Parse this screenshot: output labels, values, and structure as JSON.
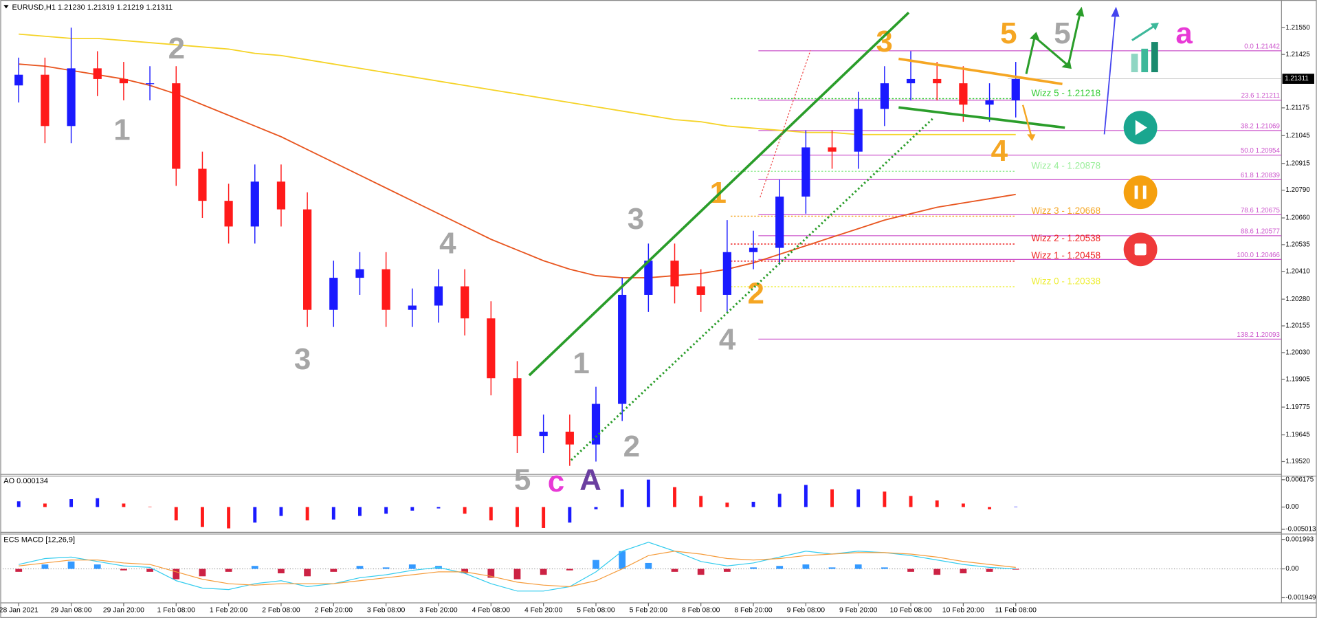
{
  "chart_data": [
    {
      "type": "candlestick",
      "title": "EURUSD,H1",
      "header_values": [
        "1.21230",
        "1.21319",
        "1.21219",
        "1.21311"
      ],
      "categories": [
        "28 Jan 2021",
        null,
        "29 Jan 08:00",
        null,
        "29 Jan 20:00",
        null,
        "1 Feb 08:00",
        null,
        "1 Feb 20:00",
        null,
        "2 Feb 08:00",
        null,
        "2 Feb 20:00",
        null,
        "3 Feb 08:00",
        null,
        "3 Feb 20:00",
        null,
        "4 Feb 08:00",
        null,
        "4 Feb 20:00",
        null,
        "5 Feb 08:00",
        null,
        "5 Feb 20:00",
        null,
        "8 Feb 08:00",
        null,
        "8 Feb 20:00",
        null,
        "9 Feb 08:00",
        null,
        "9 Feb 20:00",
        null,
        "10 Feb 08:00",
        null,
        "10 Feb 20:00",
        null,
        "11 Feb 08:00"
      ],
      "open": [
        1.2128,
        1.2133,
        1.2109,
        1.2136,
        1.2131,
        1.2129,
        1.2129,
        1.2089,
        1.2074,
        1.2062,
        1.2083,
        1.207,
        1.2023,
        1.2038,
        1.2042,
        1.2023,
        1.2025,
        1.2034,
        1.2019,
        1.1991,
        1.1964,
        1.1966,
        1.196,
        1.1979,
        1.203,
        1.2046,
        1.2034,
        1.203,
        1.205,
        1.2052,
        1.2076,
        1.2099,
        1.2097,
        1.2117,
        1.2129,
        1.2131,
        1.2129,
        1.2119,
        1.2121
      ],
      "high": [
        1.2141,
        1.2141,
        1.2155,
        1.2144,
        1.2139,
        1.2137,
        1.2137,
        1.2097,
        1.2082,
        1.2091,
        1.2091,
        1.2078,
        1.2046,
        1.205,
        1.205,
        1.2033,
        1.2042,
        1.2042,
        1.2027,
        1.1999,
        1.1974,
        1.1974,
        1.1987,
        1.2038,
        1.2054,
        1.2054,
        1.2042,
        1.2065,
        1.206,
        1.2084,
        1.2107,
        1.2107,
        1.2125,
        1.2137,
        1.2144,
        1.2139,
        1.2137,
        1.2129,
        1.2139
      ],
      "low": [
        1.212,
        1.2101,
        1.2101,
        1.2123,
        1.2121,
        1.2121,
        1.2081,
        1.2066,
        1.2054,
        1.2054,
        1.2062,
        1.2015,
        1.2015,
        1.203,
        1.2015,
        1.2015,
        1.2017,
        1.2011,
        1.1983,
        1.1956,
        1.1956,
        1.195,
        1.1952,
        1.1971,
        1.2022,
        1.2026,
        1.2022,
        1.2022,
        1.2042,
        1.2044,
        1.2068,
        1.2089,
        1.2089,
        1.2109,
        1.2121,
        1.2121,
        1.2111,
        1.2111,
        1.2113
      ],
      "close": [
        1.2133,
        1.2109,
        1.2136,
        1.2131,
        1.2129,
        1.2129,
        1.2089,
        1.2074,
        1.2062,
        1.2083,
        1.207,
        1.2023,
        1.2038,
        1.2042,
        1.2023,
        1.2025,
        1.2034,
        1.2019,
        1.1991,
        1.1964,
        1.1966,
        1.196,
        1.1979,
        1.203,
        1.2046,
        1.2034,
        1.203,
        1.205,
        1.2052,
        1.2076,
        1.2099,
        1.2097,
        1.2117,
        1.2129,
        1.2131,
        1.2129,
        1.2119,
        1.2121,
        1.2131
      ],
      "up_color": "#1a1aff",
      "down_color": "#ff1a1a",
      "overlays": [
        {
          "color": "#f5d327",
          "values": [
            1.2152,
            1.2151,
            1.215,
            1.215,
            1.2149,
            1.2148,
            1.2147,
            1.2146,
            1.2145,
            1.2143,
            1.2142,
            1.214,
            1.2138,
            1.2136,
            1.2134,
            1.2132,
            1.213,
            1.2128,
            1.2126,
            1.2124,
            1.2122,
            1.212,
            1.2118,
            1.2116,
            1.2114,
            1.2112,
            1.2111,
            1.2109,
            1.2108,
            1.2107,
            1.2106,
            1.2106,
            1.2105,
            1.2105,
            1.2105,
            1.2105,
            1.2105,
            1.2105,
            1.2105
          ]
        },
        {
          "color": "#e8551f",
          "values": [
            1.2138,
            1.2137,
            1.2135,
            1.2133,
            1.2131,
            1.2128,
            1.2124,
            1.2119,
            1.2114,
            1.2109,
            1.2104,
            1.2098,
            1.2092,
            1.2086,
            1.208,
            1.2074,
            1.2068,
            1.2062,
            1.2056,
            1.2051,
            1.2046,
            1.2042,
            1.2039,
            1.2038,
            1.2038,
            1.2039,
            1.204,
            1.2042,
            1.2045,
            1.2049,
            1.2053,
            1.2057,
            1.2061,
            1.2065,
            1.2068,
            1.2071,
            1.2073,
            1.2075,
            1.2077
          ]
        }
      ],
      "last_price": 1.21311,
      "ylim": [
        1.1946,
        1.2166
      ],
      "yticks": [
        {
          "value": 1.2155,
          "label": "1.21550"
        },
        1.21425,
        1.21175,
        1.21045,
        1.20915,
        {
          "value": 1.2079,
          "label": "1.20790"
        },
        {
          "value": 1.2066,
          "label": "1.20660"
        },
        1.20535,
        {
          "value": 1.2041,
          "label": "1.20410"
        },
        {
          "value": 1.2028,
          "label": "1.20280"
        },
        1.20155,
        {
          "value": 1.2003,
          "label": "1.20030"
        },
        1.19905,
        1.19775,
        1.19645,
        {
          "value": 1.1952,
          "label": "1.19520"
        }
      ],
      "fib_color": "#cc55cc",
      "fib_levels": [
        {
          "value": 1.21442,
          "label": "0.0 1.21442"
        },
        {
          "value": 1.21211,
          "label": "23.6 1.21211"
        },
        {
          "value": 1.21069,
          "label": "38.2 1.21069"
        },
        {
          "value": 1.20954,
          "label": "50.0 1.20954"
        },
        {
          "value": 1.20839,
          "label": "61.8 1.20839"
        },
        {
          "value": 1.20675,
          "label": "78.6 1.20675"
        },
        {
          "value": 1.20577,
          "label": "88.6 1.20577"
        },
        {
          "value": 1.20466,
          "label": "100.0 1.20466"
        },
        {
          "value": 1.20093,
          "label": "138.2 1.20093"
        }
      ],
      "wizz_levels": [
        {
          "value": 1.21218,
          "label": "Wizz 5 - 1.21218",
          "color": "#33cc33"
        },
        {
          "value": 1.20878,
          "label": "Wizz 4 - 1.20878",
          "color": "#99ee99"
        },
        {
          "value": 1.20668,
          "label": "Wizz 3 - 1.20668",
          "color": "#f5a623"
        },
        {
          "value": 1.20538,
          "label": "Wizz 2 - 1.20538",
          "color": "#ee2222"
        },
        {
          "value": 1.20458,
          "label": "Wizz 1 - 1.20458",
          "color": "#ee2222"
        },
        {
          "value": 1.20338,
          "label": "Wizz 0 - 1.20338",
          "color": "#eeee33"
        }
      ],
      "wave_labels": [
        {
          "text": "2",
          "color": "#a6a6a6"
        },
        {
          "text": "1",
          "color": "#a6a6a6"
        },
        {
          "text": "3",
          "color": "#a6a6a6"
        },
        {
          "text": "4",
          "color": "#a6a6a6"
        },
        {
          "text": "5",
          "color": "#a6a6a6"
        },
        {
          "text": "c",
          "color": "#e83ad6"
        },
        {
          "text": "A",
          "color": "#6b3fa0"
        },
        {
          "text": "1",
          "color": "#a6a6a6"
        },
        {
          "text": "2",
          "color": "#a6a6a6"
        },
        {
          "text": "3",
          "color": "#a6a6a6"
        },
        {
          "text": "4",
          "color": "#a6a6a6"
        },
        {
          "text": "1",
          "color": "#f5a623"
        },
        {
          "text": "2",
          "color": "#f5a623"
        },
        {
          "text": "3",
          "color": "#f5a623"
        },
        {
          "text": "4",
          "color": "#f5a623"
        },
        {
          "text": "5",
          "color": "#f5a623"
        },
        {
          "text": "5",
          "color": "#a6a6a6"
        },
        {
          "text": "a",
          "color": "#e83ad6"
        }
      ]
    },
    {
      "type": "bar",
      "title": "AO",
      "last_value": 0.000134,
      "up_color": "#1a1aff",
      "down_color": "#ff1a1a",
      "values": [
        0.0013,
        0.0008,
        0.0018,
        0.002,
        0.0008,
        0.0001,
        -0.003,
        -0.0045,
        -0.0048,
        -0.0035,
        -0.002,
        -0.003,
        -0.0028,
        -0.002,
        -0.0015,
        -0.0008,
        -0.0003,
        -0.0015,
        -0.003,
        -0.0045,
        -0.0047,
        -0.0035,
        -0.0005,
        0.004,
        0.0062,
        0.0045,
        0.0025,
        0.001,
        0.0012,
        0.003,
        0.005,
        0.004,
        0.004,
        0.0035,
        0.0025,
        0.0015,
        0.0008,
        -0.0005,
        0.0001
      ],
      "ylim": [
        -0.0057,
        0.0068
      ],
      "yticks": [
        0.006175,
        {
          "value": 0,
          "label": "0.00"
        },
        -0.005013
      ]
    },
    {
      "type": "macd",
      "title": "ECS MACD [12,26,9]",
      "up_color": "#3399ff",
      "down_color": "#cc2244",
      "values": [
        -0.0002,
        0.0003,
        0.0005,
        0.0003,
        -0.0001,
        -0.0002,
        -0.0007,
        -0.0005,
        -0.0002,
        0.0002,
        -0.0003,
        -0.0005,
        -0.0002,
        0.0002,
        0.0001,
        0.0003,
        0.0002,
        -0.0003,
        -0.0006,
        -0.0007,
        -0.0004,
        -0.0001,
        0.0006,
        0.0012,
        0.0004,
        -0.0002,
        -0.0004,
        -0.0002,
        0.0001,
        0.0002,
        0.0003,
        0.0001,
        0.0003,
        0.0001,
        -0.0002,
        -0.0004,
        -0.0003,
        -0.0002,
        -5e-05
      ],
      "lines": [
        {
          "color": "#33ccee",
          "values": [
            0.0003,
            0.0007,
            0.0008,
            0.0005,
            0.0002,
            0.0001,
            -0.0008,
            -0.0013,
            -0.0014,
            -0.001,
            -0.0008,
            -0.0012,
            -0.001,
            -0.0006,
            -0.0004,
            -0.0001,
            0.0001,
            -0.0003,
            -0.001,
            -0.0015,
            -0.0015,
            -0.0012,
            -0.0002,
            0.0012,
            0.0018,
            0.0012,
            0.0005,
            0.0002,
            0.0004,
            0.0008,
            0.0012,
            0.001,
            0.0012,
            0.0011,
            0.0009,
            0.0006,
            0.0003,
            0.0001,
            0.0
          ]
        },
        {
          "color": "#f59b3a",
          "values": [
            0.0002,
            0.0004,
            0.0006,
            0.0006,
            0.0004,
            0.0003,
            -0.0002,
            -0.0007,
            -0.001,
            -0.0011,
            -0.001,
            -0.001,
            -0.001,
            -0.0008,
            -0.0006,
            -0.0004,
            -0.0002,
            -0.0002,
            -0.0005,
            -0.0009,
            -0.0011,
            -0.0012,
            -0.0008,
            0.0,
            0.0009,
            0.0012,
            0.001,
            0.0007,
            0.0006,
            0.0007,
            0.0009,
            0.001,
            0.0011,
            0.0011,
            0.001,
            0.0008,
            0.0005,
            0.0003,
            0.0001
          ]
        }
      ],
      "ylim": [
        -0.0023,
        0.0023
      ],
      "yticks": [
        0.001993,
        {
          "value": 0,
          "label": "0.00"
        },
        -0.001949
      ]
    }
  ]
}
